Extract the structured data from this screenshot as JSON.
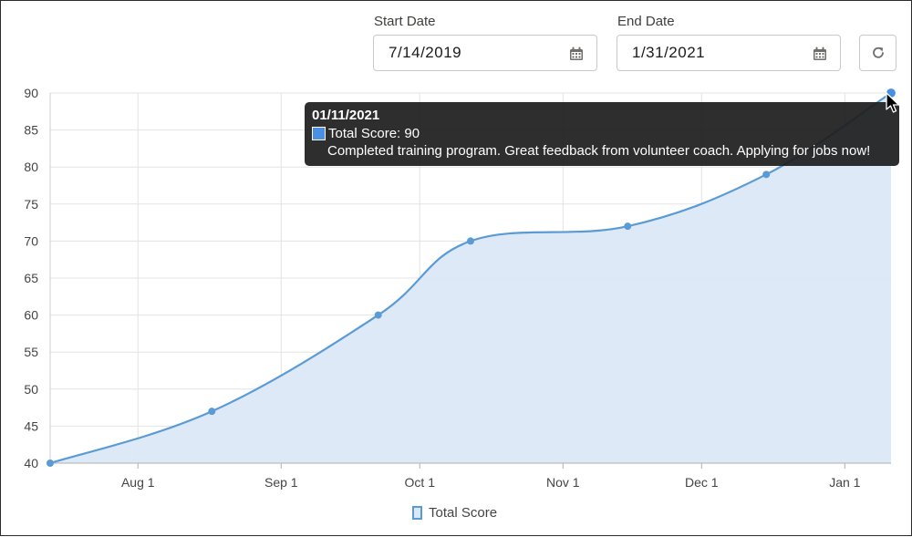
{
  "filters": {
    "start_label": "Start Date",
    "start_value": "7/14/2019",
    "end_label": "End Date",
    "end_value": "1/31/2021"
  },
  "icons": {
    "calendar": "calendar-icon",
    "refresh": "refresh-icon"
  },
  "colors": {
    "line": "#5b9bd5",
    "area": "#dbe8f6",
    "point": "#5b9bd5",
    "tooltip_bg": "#1e1e1e"
  },
  "tooltip": {
    "date": "01/11/2021",
    "score": "Total Score: 90",
    "note": "Completed training program. Great feedback from volunteer coach. Applying for jobs now!"
  },
  "chart_data": {
    "type": "area",
    "title": "",
    "xlabel": "",
    "ylabel": "",
    "ylim": [
      40,
      90
    ],
    "yticks": [
      40,
      45,
      50,
      55,
      60,
      65,
      70,
      75,
      80,
      85,
      90
    ],
    "xticks": [
      "Aug 1",
      "Sep 1",
      "Oct 1",
      "Nov 1",
      "Dec 1",
      "Jan 1"
    ],
    "xtick_dates": [
      "2020-08-01",
      "2020-09-01",
      "2020-10-01",
      "2020-11-01",
      "2020-12-01",
      "2021-01-01"
    ],
    "x_range": [
      "2020-07-13",
      "2021-01-11"
    ],
    "grid": true,
    "legend_position": "bottom",
    "series": [
      {
        "name": "Total Score",
        "points": [
          {
            "x": "2020-07-13",
            "y": 40
          },
          {
            "x": "2020-08-17",
            "y": 47
          },
          {
            "x": "2020-09-22",
            "y": 60
          },
          {
            "x": "2020-10-12",
            "y": 70
          },
          {
            "x": "2020-11-15",
            "y": 72
          },
          {
            "x": "2020-12-15",
            "y": 79
          },
          {
            "x": "2021-01-11",
            "y": 90
          }
        ]
      }
    ]
  }
}
